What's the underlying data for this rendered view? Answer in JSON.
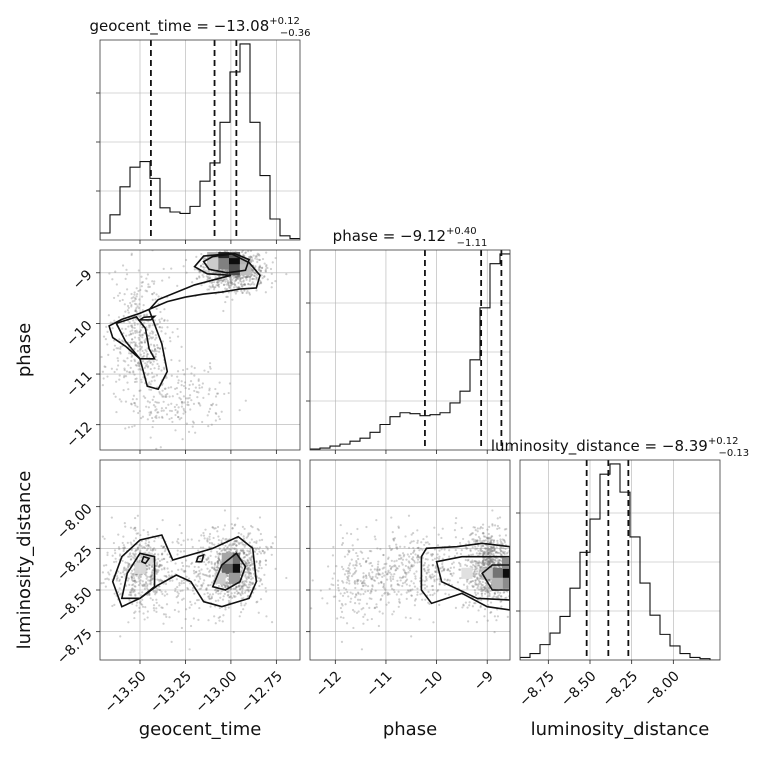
{
  "chart_data": {
    "type": "corner",
    "parameters": [
      {
        "key": "geocent_time",
        "axis_label": "geocent_time",
        "range": [
          -13.72,
          -12.62
        ],
        "ticks": [
          -13.5,
          -13.25,
          -13.0,
          -12.75
        ],
        "tick_labels": [
          "−13.50",
          "−13.25",
          "−13.00",
          "−12.75"
        ],
        "title": "geocent_time = −13.08",
        "title_sup": "+0.12",
        "title_sub": "−0.36",
        "quantiles": [
          -13.44,
          -13.09,
          -12.97
        ]
      },
      {
        "key": "phase",
        "axis_label": "phase",
        "range": [
          -12.5,
          -8.55
        ],
        "ticks": [
          -12,
          -11,
          -10,
          -9
        ],
        "tick_labels": [
          "−12",
          "−11",
          "−10",
          "−9"
        ],
        "title": "phase = −9.12",
        "title_sup": "+0.40",
        "title_sub": "−1.11",
        "quantiles": [
          -10.23,
          -9.12,
          -8.72
        ]
      },
      {
        "key": "luminosity_distance",
        "axis_label": "luminosity_distance",
        "range": [
          -8.92,
          -7.72
        ],
        "ticks": [
          -8.75,
          -8.5,
          -8.25,
          -8.0
        ],
        "tick_labels": [
          "−8.75",
          "−8.50",
          "−8.25",
          "−8.00"
        ],
        "title": "luminosity_distance = −8.39",
        "title_sup": "+0.12",
        "title_sub": "−0.13",
        "quantiles": [
          -8.52,
          -8.39,
          -8.27
        ]
      }
    ],
    "histograms": [
      {
        "param": "geocent_time",
        "bins": 20,
        "counts": [
          0.05,
          0.18,
          0.38,
          0.52,
          0.56,
          0.44,
          0.23,
          0.2,
          0.19,
          0.24,
          0.42,
          0.55,
          0.84,
          1.2,
          1.4,
          0.84,
          0.46,
          0.15,
          0.03,
          0.01
        ]
      },
      {
        "param": "phase",
        "bins": 20,
        "counts": [
          0.01,
          0.02,
          0.04,
          0.06,
          0.09,
          0.12,
          0.18,
          0.26,
          0.34,
          0.38,
          0.37,
          0.35,
          0.36,
          0.38,
          0.48,
          0.6,
          0.92,
          1.45,
          1.9,
          2.0
        ]
      },
      {
        "param": "luminosity_distance",
        "bins": 20,
        "counts": [
          0.02,
          0.05,
          0.12,
          0.21,
          0.34,
          0.56,
          0.84,
          1.1,
          1.45,
          1.53,
          1.31,
          0.96,
          0.6,
          0.35,
          0.2,
          0.11,
          0.05,
          0.02,
          0.01,
          0.0
        ]
      }
    ],
    "sample_modes": [
      {
        "weight": 0.55,
        "mean": [
          -12.99,
          -8.95,
          -8.37
        ],
        "sd": [
          0.09,
          0.2,
          0.11
        ]
      },
      {
        "weight": 0.3,
        "mean": [
          -13.5,
          -10.3,
          -8.38
        ],
        "sd": [
          0.08,
          0.6,
          0.12
        ]
      },
      {
        "weight": 0.15,
        "mean": [
          -13.3,
          -11.5,
          -8.45
        ],
        "sd": [
          0.14,
          0.35,
          0.12
        ]
      }
    ],
    "contours": [
      {
        "x": "geocent_time",
        "y": "phase",
        "level": "outer",
        "points": [
          [
            -13.67,
            -10.05
          ],
          [
            -13.6,
            -9.92
          ],
          [
            -13.5,
            -9.8
          ],
          [
            -13.35,
            -9.57
          ],
          [
            -13.25,
            -9.48
          ],
          [
            -13.15,
            -9.42
          ],
          [
            -13.05,
            -9.38
          ],
          [
            -12.95,
            -9.32
          ],
          [
            -12.86,
            -9.3
          ],
          [
            -12.84,
            -9.05
          ],
          [
            -12.9,
            -8.8
          ],
          [
            -13.0,
            -8.62
          ],
          [
            -13.15,
            -8.67
          ],
          [
            -13.2,
            -8.88
          ],
          [
            -13.13,
            -9.02
          ],
          [
            -13.0,
            -9.05
          ],
          [
            -13.2,
            -9.24
          ],
          [
            -13.4,
            -9.53
          ],
          [
            -13.45,
            -9.73
          ],
          [
            -13.38,
            -10.4
          ],
          [
            -13.35,
            -10.95
          ],
          [
            -13.4,
            -11.3
          ],
          [
            -13.46,
            -11.24
          ],
          [
            -13.5,
            -10.7
          ],
          [
            -13.58,
            -10.45
          ],
          [
            -13.65,
            -10.28
          ]
        ]
      },
      {
        "x": "geocent_time",
        "y": "phase",
        "level": "inner",
        "points": [
          [
            -13.63,
            -10.0
          ],
          [
            -13.52,
            -9.87
          ],
          [
            -13.47,
            -10.1
          ],
          [
            -13.45,
            -10.5
          ],
          [
            -13.42,
            -10.7
          ],
          [
            -13.5,
            -10.7
          ],
          [
            -13.58,
            -10.35
          ]
        ]
      },
      {
        "x": "geocent_time",
        "y": "phase",
        "level": "inner",
        "points": [
          [
            -13.1,
            -8.68
          ],
          [
            -12.98,
            -8.62
          ],
          [
            -12.9,
            -8.74
          ],
          [
            -12.92,
            -8.95
          ],
          [
            -13.02,
            -9.0
          ],
          [
            -13.12,
            -8.93
          ],
          [
            -13.15,
            -8.78
          ]
        ]
      },
      {
        "x": "geocent_time",
        "y": "phase",
        "level": "inner",
        "points": [
          [
            -13.48,
            -9.88
          ],
          [
            -13.42,
            -9.86
          ],
          [
            -13.44,
            -9.93
          ],
          [
            -13.5,
            -9.93
          ]
        ]
      },
      {
        "x": "geocent_time",
        "y": "luminosity_distance",
        "level": "outer",
        "points": [
          [
            -13.6,
            -8.6
          ],
          [
            -13.65,
            -8.45
          ],
          [
            -13.6,
            -8.3
          ],
          [
            -13.5,
            -8.2
          ],
          [
            -13.38,
            -8.17
          ],
          [
            -13.32,
            -8.32
          ],
          [
            -13.1,
            -8.25
          ],
          [
            -12.96,
            -8.18
          ],
          [
            -12.88,
            -8.25
          ],
          [
            -12.86,
            -8.45
          ],
          [
            -12.9,
            -8.55
          ],
          [
            -13.05,
            -8.6
          ],
          [
            -13.15,
            -8.57
          ],
          [
            -13.22,
            -8.45
          ],
          [
            -13.3,
            -8.41
          ],
          [
            -13.4,
            -8.47
          ],
          [
            -13.5,
            -8.55
          ]
        ]
      },
      {
        "x": "geocent_time",
        "y": "luminosity_distance",
        "level": "inner",
        "points": [
          [
            -13.6,
            -8.55
          ],
          [
            -13.57,
            -8.4
          ],
          [
            -13.5,
            -8.28
          ],
          [
            -13.42,
            -8.3
          ],
          [
            -13.42,
            -8.48
          ],
          [
            -13.5,
            -8.55
          ]
        ]
      },
      {
        "x": "geocent_time",
        "y": "luminosity_distance",
        "level": "inner",
        "points": [
          [
            -13.1,
            -8.48
          ],
          [
            -13.05,
            -8.35
          ],
          [
            -12.97,
            -8.28
          ],
          [
            -12.92,
            -8.36
          ],
          [
            -12.95,
            -8.45
          ],
          [
            -13.03,
            -8.5
          ]
        ]
      },
      {
        "x": "geocent_time",
        "y": "luminosity_distance",
        "level": "inner",
        "points": [
          [
            -13.48,
            -8.3
          ],
          [
            -13.45,
            -8.31
          ],
          [
            -13.47,
            -8.34
          ],
          [
            -13.49,
            -8.33
          ]
        ]
      },
      {
        "x": "geocent_time",
        "y": "luminosity_distance",
        "level": "inner",
        "points": [
          [
            -13.18,
            -8.3
          ],
          [
            -13.15,
            -8.29
          ],
          [
            -13.16,
            -8.33
          ],
          [
            -13.19,
            -8.33
          ]
        ]
      },
      {
        "x": "phase",
        "y": "luminosity_distance",
        "level": "outer",
        "points": [
          [
            -10.3,
            -8.3
          ],
          [
            -10.2,
            -8.25
          ],
          [
            -9.6,
            -8.24
          ],
          [
            -9.1,
            -8.22
          ],
          [
            -8.55,
            -8.24
          ],
          [
            -8.55,
            -8.62
          ],
          [
            -9.0,
            -8.6
          ],
          [
            -9.5,
            -8.52
          ],
          [
            -10.1,
            -8.58
          ],
          [
            -10.3,
            -8.5
          ]
        ]
      },
      {
        "x": "phase",
        "y": "luminosity_distance",
        "level": "inner",
        "points": [
          [
            -10.0,
            -8.33
          ],
          [
            -9.5,
            -8.3
          ],
          [
            -8.55,
            -8.3
          ],
          [
            -8.55,
            -8.56
          ],
          [
            -9.2,
            -8.55
          ],
          [
            -9.9,
            -8.45
          ]
        ]
      },
      {
        "x": "phase",
        "y": "luminosity_distance",
        "level": "inner",
        "points": [
          [
            -9.1,
            -8.4
          ],
          [
            -8.9,
            -8.35
          ],
          [
            -8.55,
            -8.35
          ],
          [
            -8.55,
            -8.5
          ],
          [
            -8.9,
            -8.5
          ]
        ]
      }
    ],
    "density_cells": [
      {
        "x": "geocent_time",
        "y": "phase",
        "cells": [
          [
            -13.04,
            -8.7,
            0.85
          ],
          [
            -12.98,
            -8.7,
            0.65
          ],
          [
            -13.04,
            -8.82,
            0.5
          ],
          [
            -12.98,
            -8.82,
            0.95
          ],
          [
            -12.98,
            -8.94,
            0.7
          ],
          [
            -13.1,
            -8.7,
            0.3
          ],
          [
            -12.92,
            -8.82,
            0.3
          ],
          [
            -13.1,
            -8.82,
            0.2
          ],
          [
            -12.92,
            -8.94,
            0.25
          ]
        ]
      },
      {
        "x": "geocent_time",
        "y": "luminosity_distance",
        "cells": [
          [
            -12.98,
            -8.37,
            0.95
          ],
          [
            -13.02,
            -8.37,
            0.6
          ],
          [
            -12.98,
            -8.31,
            0.55
          ],
          [
            -13.02,
            -8.31,
            0.35
          ],
          [
            -12.98,
            -8.43,
            0.4
          ],
          [
            -13.06,
            -8.43,
            0.2
          ],
          [
            -13.5,
            -8.37,
            0.15
          ],
          [
            -13.46,
            -8.31,
            0.15
          ]
        ]
      },
      {
        "x": "phase",
        "y": "luminosity_distance",
        "cells": [
          [
            -8.6,
            -8.4,
            0.95
          ],
          [
            -8.8,
            -8.4,
            0.55
          ],
          [
            -8.6,
            -8.34,
            0.45
          ],
          [
            -8.6,
            -8.46,
            0.45
          ],
          [
            -8.8,
            -8.46,
            0.3
          ],
          [
            -9.0,
            -8.4,
            0.25
          ],
          [
            -9.4,
            -8.4,
            0.12
          ]
        ]
      }
    ]
  }
}
